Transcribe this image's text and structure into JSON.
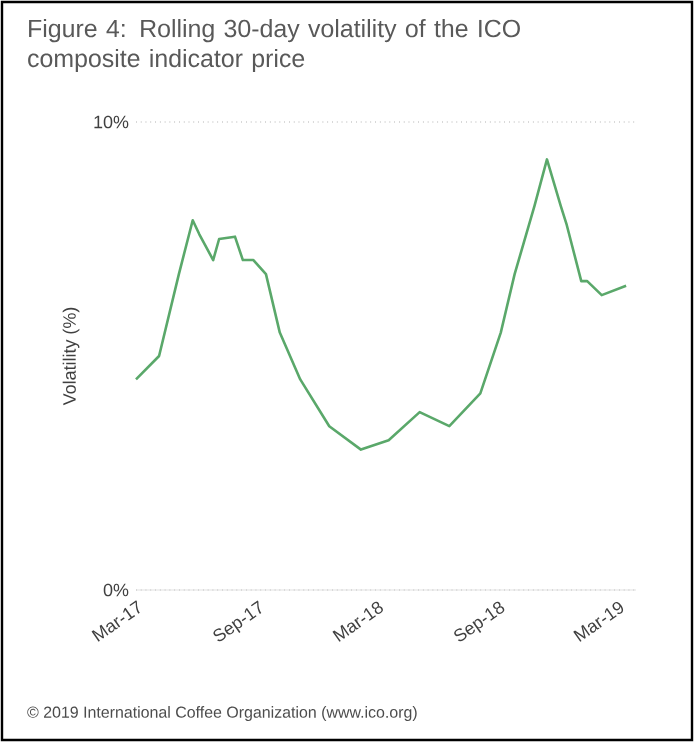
{
  "chart_data": {
    "type": "line",
    "title": "Figure 4:   Rolling 30-day volatility of the ICO composite indicator price",
    "ylabel": "Volatility (%)",
    "annotations": [
      "© 2019 International Coffee Organization (www.ico.org)"
    ],
    "x": [
      "2017-02-25",
      "2017-04-01",
      "2017-05-01",
      "2017-05-22",
      "2017-06-01",
      "2017-06-22",
      "2017-07-01",
      "2017-07-25",
      "2017-08-06",
      "2017-08-22",
      "2017-09-10",
      "2017-10-01",
      "2017-11-01",
      "2017-12-15",
      "2018-02-01",
      "2018-03-15",
      "2018-05-01",
      "2018-06-15",
      "2018-08-01",
      "2018-09-01",
      "2018-09-22",
      "2018-10-22",
      "2018-11-10",
      "2018-12-01",
      "2018-12-10",
      "2019-01-01",
      "2019-01-10",
      "2019-02-01",
      "2019-03-10"
    ],
    "series": [
      {
        "color": "#5aa86a",
        "values": [
          4.5,
          5.0,
          6.75,
          7.9,
          7.6,
          7.05,
          7.5,
          7.55,
          7.05,
          7.05,
          6.75,
          5.5,
          4.5,
          3.5,
          3.0,
          3.2,
          3.8,
          3.5,
          4.2,
          5.5,
          6.75,
          8.2,
          9.2,
          8.2,
          7.8,
          6.6,
          6.6,
          6.3,
          6.5
        ]
      }
    ],
    "xlim": [
      "2017-02-25",
      "2019-03-25"
    ],
    "xticks": [
      {
        "value": "2017-03-01",
        "label": "Mar-17"
      },
      {
        "value": "2017-09-01",
        "label": "Sep-17"
      },
      {
        "value": "2018-03-01",
        "label": "Mar-18"
      },
      {
        "value": "2018-09-01",
        "label": "Sep-18"
      },
      {
        "value": "2019-03-01",
        "label": "Mar-19"
      }
    ],
    "ylim": [
      0,
      10
    ],
    "yticks": [
      {
        "value": 0,
        "label": "0%"
      },
      {
        "value": 10,
        "label": "10%"
      }
    ],
    "grid": "y",
    "marker": "none",
    "line_style": "solid"
  }
}
